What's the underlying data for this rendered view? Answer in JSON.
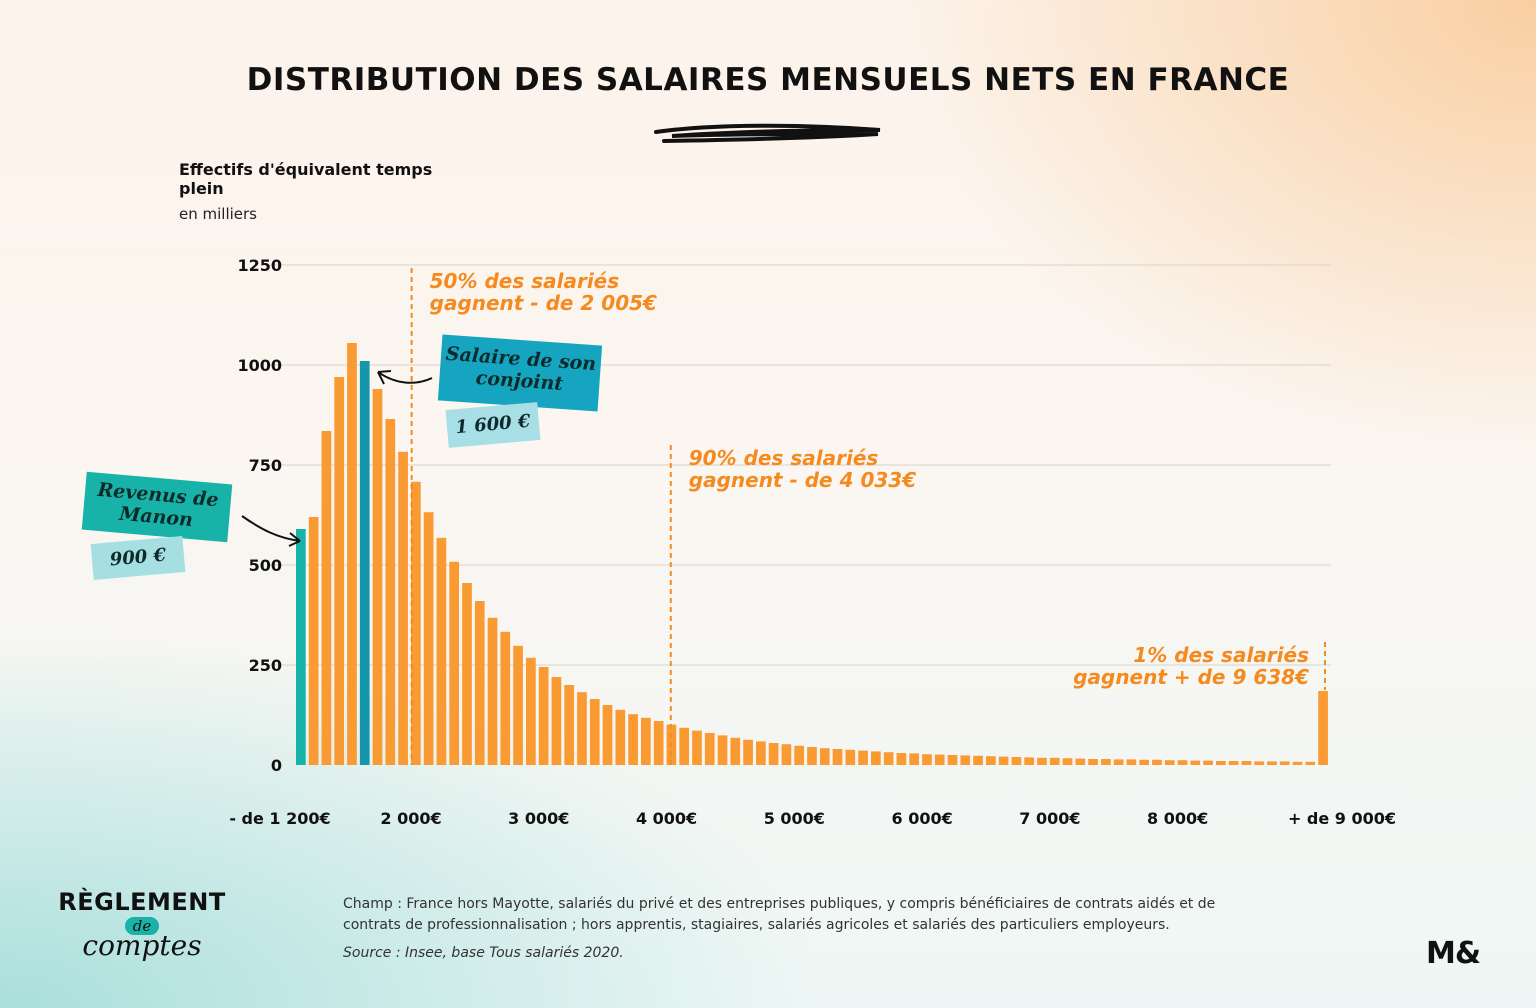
{
  "title": "DISTRIBUTION DES SALAIRES MENSUELS NETS EN FRANCE",
  "colors": {
    "bar": "#fa9a33",
    "highlight_manon": "#17b3a8",
    "highlight_conjoint": "#1596ab",
    "annotation": "#f58a1f",
    "grid": "#d9d2cb",
    "text": "#111111"
  },
  "chart_data": {
    "type": "bar",
    "ylabel": "Effectifs d'équivalent temps plein",
    "yunit": "en milliers",
    "ylim": [
      0,
      1250
    ],
    "yticks": [
      0,
      250,
      500,
      750,
      1000,
      1250
    ],
    "grid": true,
    "xtick_labels": [
      "- de 1 200€",
      "2 000€",
      "3 000€",
      "4 000€",
      "5 000€",
      "6 000€",
      "7 000€",
      "8 000€",
      "+  de 9 000€"
    ],
    "bin_width_eur": 100,
    "first_bin_label": "- de 1 200€",
    "last_bin_label": "+  de 9 000€",
    "values": [
      590,
      620,
      835,
      970,
      1055,
      1010,
      940,
      865,
      783,
      708,
      632,
      568,
      508,
      455,
      410,
      368,
      333,
      298,
      268,
      245,
      220,
      200,
      182,
      165,
      150,
      138,
      127,
      118,
      110,
      101,
      93,
      86,
      80,
      74,
      68,
      63,
      59,
      55,
      52,
      48,
      45,
      42,
      40,
      38,
      36,
      34,
      32,
      30,
      29,
      27,
      26,
      25,
      24,
      23,
      22,
      21,
      20,
      19,
      18,
      18,
      17,
      16,
      15,
      15,
      14,
      14,
      13,
      13,
      12,
      12,
      11,
      11,
      10,
      10,
      10,
      9,
      9,
      9,
      8,
      8,
      185
    ],
    "highlighted_bars": [
      {
        "index": 0,
        "name": "Revenus de Manon"
      },
      {
        "index": 5,
        "name": "Salaire de son conjoint"
      }
    ],
    "annotations": [
      {
        "line1": "50% des salariés",
        "line2": "gagnent - de 2 005€",
        "x_eur": 2005
      },
      {
        "line1": "90% des salariés",
        "line2": "gagnent - de 4 033€",
        "x_eur": 4033
      },
      {
        "line1": "1% des salariés",
        "line2": "gagnent + de 9 638€",
        "x_eur": 9638
      }
    ]
  },
  "callouts": {
    "manon": {
      "label": "Revenus de Manon",
      "value": "900 €"
    },
    "conjoint": {
      "label": "Salaire de son conjoint",
      "value": "1 600 €"
    }
  },
  "footer": {
    "brand_line1": "RÈGLEMENT",
    "brand_line2": "de",
    "brand_line3": "comptes",
    "champ": "Champ : France hors Mayotte, salariés du privé et des entreprises publiques, y compris bénéficiaires de contrats aidés et de contrats de professionnalisation ; hors apprentis, stagiaires, salariés agricoles et salariés des particuliers employeurs.",
    "source": "Source : Insee, base Tous salariés 2020.",
    "logo": "M&"
  }
}
